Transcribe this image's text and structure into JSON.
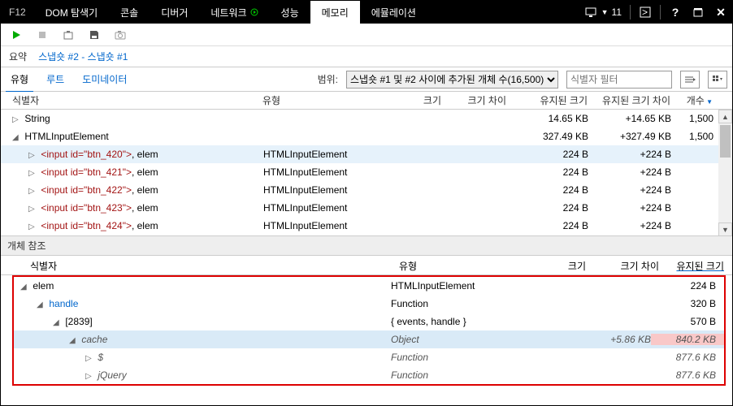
{
  "titlebar": {
    "f12": "F12",
    "tabs": [
      {
        "label": "DOM 탐색기"
      },
      {
        "label": "콘솔"
      },
      {
        "label": "디버거"
      },
      {
        "label": "네트워크"
      },
      {
        "label": "성능"
      },
      {
        "label": "메모리",
        "active": true
      },
      {
        "label": "에뮬레이션"
      }
    ],
    "count": "11"
  },
  "subbar": {
    "summary": "요약",
    "breadcrumb": "스냅숏 #2 - 스냅숏 #1"
  },
  "filterbar": {
    "tabs": [
      "유형",
      "루트",
      "도미네이터"
    ],
    "range_label": "범위:",
    "range_value": "스냅숏 #1 및 #2 사이에 추가된 개체 수(16,500)",
    "filter_placeholder": "식별자 필터"
  },
  "grid": {
    "headers": {
      "identifier": "식별자",
      "type": "유형",
      "size": "크기",
      "sizediff": "크기 차이",
      "retained": "유지된 크기",
      "retdiff": "유지된 크기 차이",
      "count": "개수"
    },
    "rows": [
      {
        "indent": 0,
        "toggle": "▷",
        "label": "String",
        "type": "",
        "size": "",
        "sizediff": "",
        "retained": "14.65 KB",
        "retdiff": "+14.65 KB",
        "count": "1,500"
      },
      {
        "indent": 0,
        "toggle": "◢",
        "label": "HTMLInputElement",
        "type": "",
        "size": "",
        "sizediff": "",
        "retained": "327.49 KB",
        "retdiff": "+327.49 KB",
        "count": "1,500"
      },
      {
        "indent": 1,
        "toggle": "▷",
        "html": "<input id=\"btn_420\">",
        "tail": ", elem",
        "type": "HTMLInputElement",
        "size": "",
        "sizediff": "",
        "retained": "224 B",
        "retdiff": "+224 B",
        "count": "",
        "sel": true
      },
      {
        "indent": 1,
        "toggle": "▷",
        "html": "<input id=\"btn_421\">",
        "tail": ", elem",
        "type": "HTMLInputElement",
        "size": "",
        "sizediff": "",
        "retained": "224 B",
        "retdiff": "+224 B",
        "count": ""
      },
      {
        "indent": 1,
        "toggle": "▷",
        "html": "<input id=\"btn_422\">",
        "tail": ", elem",
        "type": "HTMLInputElement",
        "size": "",
        "sizediff": "",
        "retained": "224 B",
        "retdiff": "+224 B",
        "count": ""
      },
      {
        "indent": 1,
        "toggle": "▷",
        "html": "<input id=\"btn_423\">",
        "tail": ", elem",
        "type": "HTMLInputElement",
        "size": "",
        "sizediff": "",
        "retained": "224 B",
        "retdiff": "+224 B",
        "count": ""
      },
      {
        "indent": 1,
        "toggle": "▷",
        "html": "<input id=\"btn_424\">",
        "tail": ", elem",
        "type": "HTMLInputElement",
        "size": "",
        "sizediff": "",
        "retained": "224 B",
        "retdiff": "+224 B",
        "count": ""
      }
    ]
  },
  "refs": {
    "title": "개체 참조",
    "headers": {
      "identifier": "식별자",
      "type": "유형",
      "size": "크기",
      "sizediff": "크기 차이",
      "retained": "유지된 크기"
    },
    "rows": [
      {
        "indent": 0,
        "toggle": "◢",
        "label": "elem",
        "type": "HTMLInputElement",
        "ret": "224 B"
      },
      {
        "indent": 1,
        "toggle": "◢",
        "label": "handle",
        "link": true,
        "type": "Function",
        "ret": "320 B"
      },
      {
        "indent": 2,
        "toggle": "◢",
        "label": "[2839]",
        "type": "{ events, handle }",
        "ret": "570 B"
      },
      {
        "indent": 3,
        "toggle": "◢",
        "label": "cache",
        "italic": true,
        "type": "Object",
        "sizediff": "+5.86 KB",
        "ret": "840.2 KB",
        "hilite": true
      },
      {
        "indent": 4,
        "toggle": "▷",
        "label": "$",
        "italic": true,
        "link": true,
        "type": "Function",
        "ret": "877.6 KB"
      },
      {
        "indent": 4,
        "toggle": "▷",
        "label": "jQuery",
        "italic": true,
        "link": true,
        "type": "Function",
        "ret": "877.6 KB"
      }
    ]
  },
  "colors": {
    "link": "#0066cc",
    "tag": "#a31515",
    "highlight_row": "#d9eaf7",
    "highlight_ret": "#f9c8c8",
    "border_red": "#d00"
  }
}
